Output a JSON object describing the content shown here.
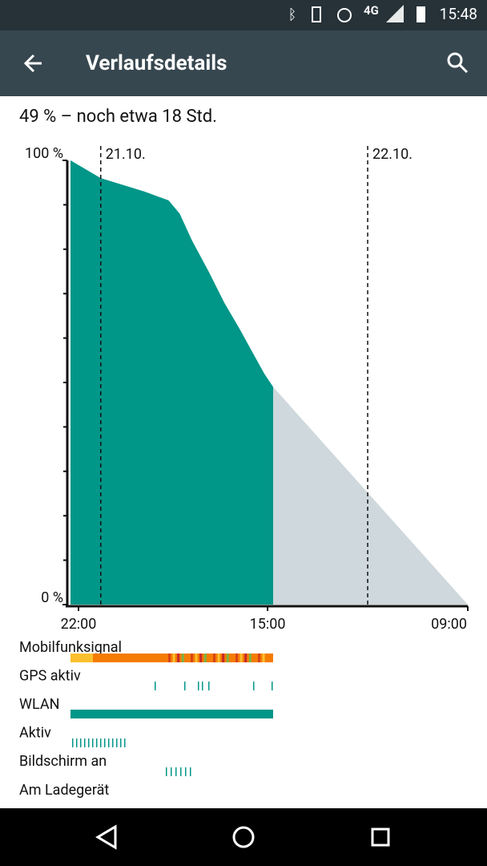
{
  "status_bar": {
    "network": "4G",
    "time": "15:48"
  },
  "app_bar": {
    "title": "Verlaufsdetails"
  },
  "summary": "49 % – noch etwa 18 Std.",
  "chart_data": {
    "type": "area",
    "xlim": [
      21.28,
      57
    ],
    "xticks": [
      {
        "value": 22,
        "label": "22:00"
      },
      {
        "value": 39,
        "label": "15:00"
      },
      {
        "value": 57,
        "label": "09:00"
      }
    ],
    "ylim": [
      0,
      100
    ],
    "yticks": [
      {
        "value": 0,
        "label": "0 %"
      },
      {
        "value": 100,
        "label": "100 %"
      }
    ],
    "minor_yticks": [
      10,
      20,
      30,
      40,
      50,
      60,
      70,
      80,
      90
    ],
    "date_markers": [
      {
        "value": 24,
        "label": "21.10."
      },
      {
        "value": 48,
        "label": "22.10."
      }
    ],
    "series": [
      {
        "color": "#009688",
        "x": [
          21.28,
          24.0,
          27.9,
          30.1,
          31.1,
          32.2,
          33.7,
          35.1,
          36.5,
          37.6,
          38.7,
          39.5
        ],
        "values": [
          100,
          96,
          93,
          91,
          88,
          82,
          75,
          68,
          62,
          57,
          52,
          49
        ]
      },
      {
        "color": "#cfd8dc",
        "x": [
          39.5,
          57
        ],
        "values": [
          49,
          0
        ]
      }
    ]
  },
  "rows": [
    "Mobilfunksignal",
    "GPS aktiv",
    "WLAN",
    "Aktiv",
    "Bildschirm an",
    "Am Ladegerät"
  ]
}
